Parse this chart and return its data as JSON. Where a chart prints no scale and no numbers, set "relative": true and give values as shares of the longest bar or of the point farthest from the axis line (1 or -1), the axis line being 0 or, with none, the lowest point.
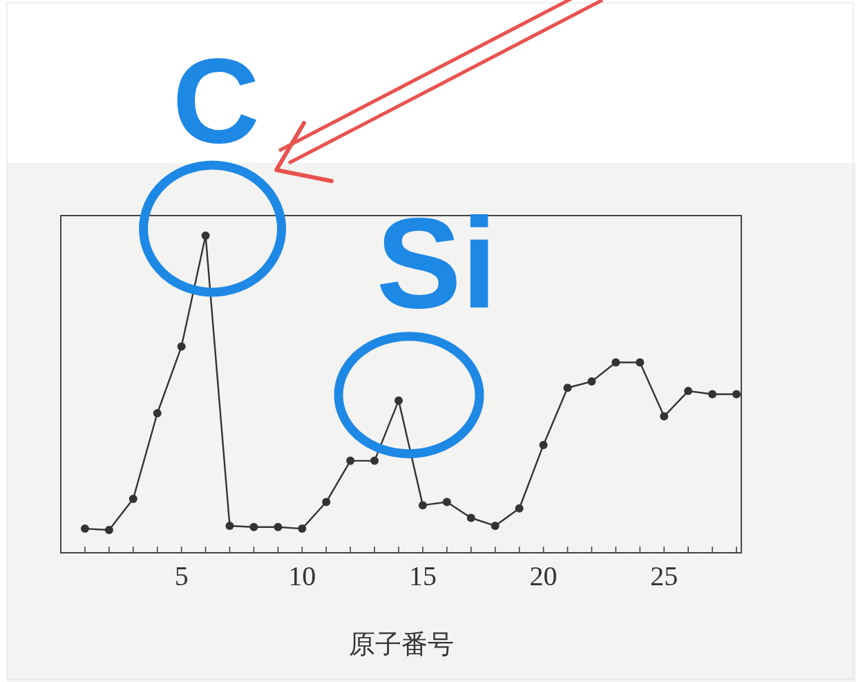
{
  "chart_data": {
    "type": "line",
    "relative": true,
    "xlabel": "原子番号",
    "x": [
      1,
      2,
      3,
      4,
      5,
      6,
      7,
      8,
      9,
      10,
      11,
      12,
      13,
      14,
      15,
      16,
      17,
      18,
      19,
      20,
      21,
      22,
      23,
      24,
      25,
      26,
      27,
      28
    ],
    "series": [
      {
        "color": "#333333",
        "values": [
          0.076,
          0.072,
          0.17,
          0.44,
          0.65,
          1,
          0.085,
          0.081,
          0.081,
          0.076,
          0.16,
          0.29,
          0.29,
          0.48,
          0.15,
          0.16,
          0.11,
          0.085,
          0.14,
          0.34,
          0.52,
          0.54,
          0.6,
          0.6,
          0.43,
          0.51,
          0.5,
          0.5
        ]
      }
    ],
    "xlim": [
      0,
      28.2
    ],
    "xticks": [
      {
        "value": 1,
        "label": null
      },
      {
        "value": 2,
        "label": null
      },
      {
        "value": 3,
        "label": null
      },
      {
        "value": 4,
        "label": null
      },
      5,
      {
        "value": 6,
        "label": null
      },
      {
        "value": 7,
        "label": null
      },
      {
        "value": 8,
        "label": null
      },
      {
        "value": 9,
        "label": null
      },
      10,
      {
        "value": 11,
        "label": null
      },
      {
        "value": 12,
        "label": null
      },
      {
        "value": 13,
        "label": null
      },
      {
        "value": 14,
        "label": null
      },
      15,
      {
        "value": 16,
        "label": null
      },
      {
        "value": 17,
        "label": null
      },
      {
        "value": 18,
        "label": null
      },
      {
        "value": 19,
        "label": null
      },
      20,
      {
        "value": 21,
        "label": null
      },
      {
        "value": 22,
        "label": null
      },
      {
        "value": 23,
        "label": null
      },
      {
        "value": 24,
        "label": null
      },
      25,
      {
        "value": 26,
        "label": null
      },
      {
        "value": 27,
        "label": null
      },
      {
        "value": 28,
        "label": null
      }
    ],
    "marker": "circle",
    "line_style": "solid",
    "annotations": [
      {
        "text": "C",
        "x": 6,
        "y": 1
      },
      {
        "text": "Si",
        "x": 14,
        "y": 0.48
      }
    ]
  }
}
